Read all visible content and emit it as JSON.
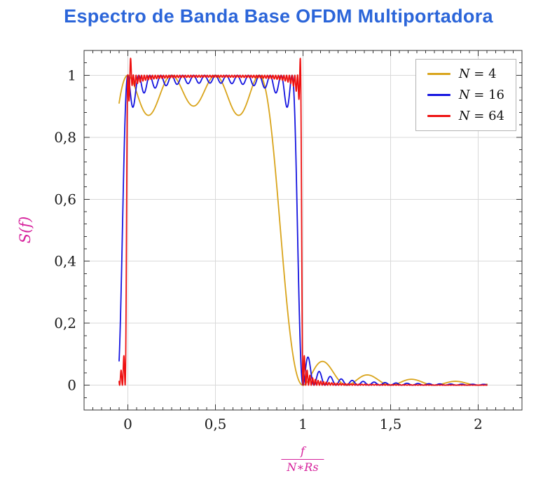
{
  "chart_data": {
    "type": "line",
    "title": "Espectro de Banda Base OFDM Multiportadora",
    "title_color": "#2b65d9",
    "ylabel": "S(f)",
    "xlabel": {
      "numerator": "f",
      "denominator": "N∗Rs"
    },
    "axis_label_color": "#d6219c",
    "xlim": [
      -0.25,
      2.25
    ],
    "ylim": [
      -0.08,
      1.08
    ],
    "xticks": [
      {
        "v": 0,
        "label": "0"
      },
      {
        "v": 0.5,
        "label": "0,5"
      },
      {
        "v": 1,
        "label": "1"
      },
      {
        "v": 1.5,
        "label": "1,5"
      },
      {
        "v": 2,
        "label": "2"
      }
    ],
    "yticks": [
      {
        "v": 0,
        "label": "0"
      },
      {
        "v": 0.2,
        "label": "0,2"
      },
      {
        "v": 0.4,
        "label": "0,4"
      },
      {
        "v": 0.6,
        "label": "0,6"
      },
      {
        "v": 0.8,
        "label": "0,8"
      },
      {
        "v": 1,
        "label": "1"
      }
    ],
    "x_minor_step": 0.05,
    "y_minor_step": 0.04,
    "grid": "major",
    "grid_color": "#d9d9d9",
    "frame_color": "#333333",
    "tick_label_color": "#1a1a1a",
    "legend": {
      "position": "top-right",
      "border_color": "#b3b3b3"
    },
    "model": {
      "name": "ofdm_baseband_spectrum",
      "formula": "S(x) = sum_{k=0}^{N-1} sinc^2(N*x - k); sinc(t) = sin(pi*t)/(pi*t); x = f/(N*Rs)",
      "domain": [
        -0.05,
        2.05
      ]
    },
    "series": [
      {
        "label": "N = 4",
        "N": 4,
        "color": "#d9a41b",
        "samples": 900,
        "edge_overshoot": 0,
        "reference_points": [
          [
            -0.05,
            0.91
          ],
          [
            0,
            1.0
          ],
          [
            0.125,
            0.87
          ],
          [
            0.25,
            0.99
          ],
          [
            0.375,
            0.9
          ],
          [
            0.5,
            1.0
          ],
          [
            0.625,
            0.87
          ],
          [
            0.75,
            1.0
          ],
          [
            0.875,
            0.47
          ],
          [
            1.0,
            0
          ],
          [
            1.125,
            0.075
          ],
          [
            1.25,
            0
          ],
          [
            1.375,
            0.033
          ],
          [
            1.5,
            0
          ],
          [
            1.625,
            0.02
          ],
          [
            1.75,
            0
          ],
          [
            1.875,
            0.013
          ],
          [
            2.0,
            0
          ]
        ]
      },
      {
        "label": "N = 16",
        "N": 16,
        "color": "#1414e0",
        "samples": 1600,
        "edge_overshoot": 0,
        "reference_points": [
          [
            -0.05,
            0.08
          ],
          [
            0,
            1.0
          ],
          [
            0.031,
            0.89
          ],
          [
            0.25,
            0.96
          ],
          [
            0.5,
            0.96
          ],
          [
            0.75,
            0.96
          ],
          [
            0.9375,
            1.0
          ],
          [
            1.0,
            0
          ],
          [
            1.031,
            0.085
          ],
          [
            1.0625,
            0
          ],
          [
            1.094,
            0.045
          ],
          [
            1.3,
            0.01
          ],
          [
            1.6,
            0.005
          ],
          [
            2.0,
            0
          ]
        ]
      },
      {
        "label": "N = 64",
        "N": 64,
        "color": "#ee1111",
        "samples": 2600,
        "edge_overshoot": 0.055,
        "reference_points": [
          [
            -0.05,
            0.0
          ],
          [
            0,
            1.0
          ],
          [
            0.0155,
            1.05
          ],
          [
            0.25,
            0.99
          ],
          [
            0.5,
            0.99
          ],
          [
            0.75,
            0.99
          ],
          [
            0.9845,
            1.05
          ],
          [
            1.0,
            0
          ],
          [
            1.023,
            0.04
          ],
          [
            1.06,
            0.02
          ],
          [
            1.2,
            0.005
          ],
          [
            2.0,
            0
          ]
        ]
      }
    ]
  }
}
